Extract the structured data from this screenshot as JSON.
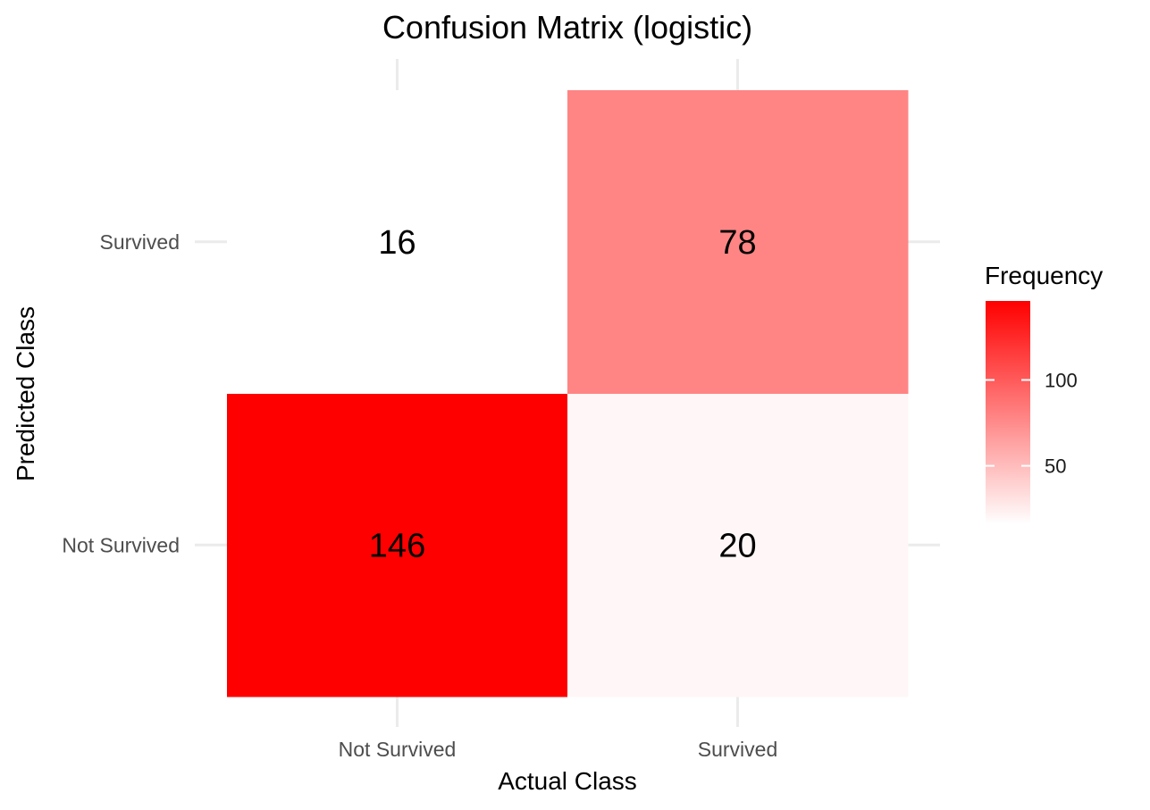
{
  "chart_data": {
    "type": "heatmap",
    "title": "Confusion Matrix (logistic)",
    "xlabel": "Actual Class",
    "ylabel": "Predicted Class",
    "x_categories": [
      "Not Survived",
      "Survived"
    ],
    "y_categories": [
      "Not Survived",
      "Survived"
    ],
    "cells": [
      {
        "actual": "Not Survived",
        "predicted": "Not Survived",
        "value": 146
      },
      {
        "actual": "Survived",
        "predicted": "Not Survived",
        "value": 20
      },
      {
        "actual": "Not Survived",
        "predicted": "Survived",
        "value": 16
      },
      {
        "actual": "Survived",
        "predicted": "Survived",
        "value": 78
      }
    ],
    "legend": {
      "title": "Frequency",
      "ticks": [
        50,
        100
      ],
      "placement": "right"
    },
    "color_scale": {
      "low_color": "#ffffff",
      "high_color": "#ff0000",
      "domain": [
        16,
        146
      ]
    },
    "grid": true
  }
}
